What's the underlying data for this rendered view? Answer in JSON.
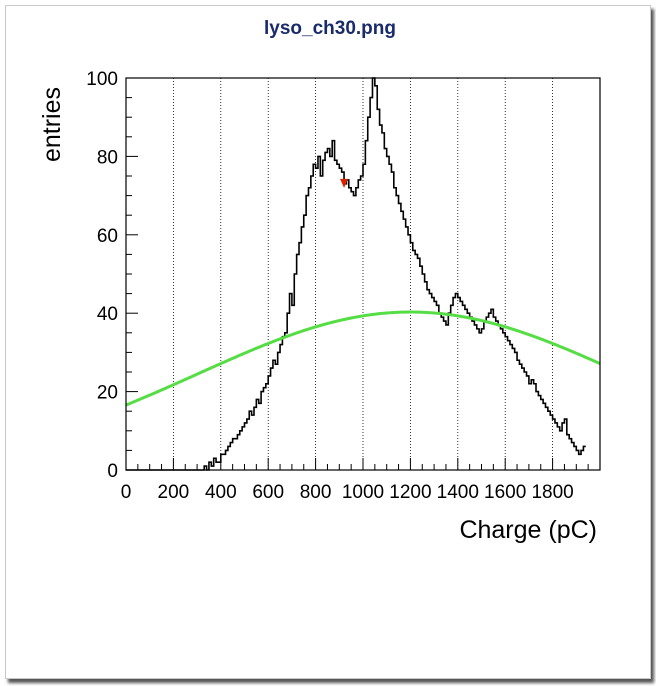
{
  "chart_data": {
    "type": "histogram",
    "title": "lyso_ch30.png",
    "xlabel": "Charge (pC)",
    "ylabel": "entries",
    "xlim": [
      0,
      2000
    ],
    "ylim": [
      0,
      100
    ],
    "x_tick_labels": [
      "0",
      "200",
      "400",
      "600",
      "800",
      "1000",
      "1200",
      "1400",
      "1600",
      "1800"
    ],
    "y_tick_labels": [
      "0",
      "20",
      "40",
      "60",
      "80",
      "100"
    ],
    "grid": "vertical dotted",
    "histogram": {
      "bin_width": 10,
      "x_start": 0,
      "values": [
        0,
        0,
        0,
        0,
        0,
        0,
        0,
        0,
        0,
        0,
        0,
        0,
        0,
        0,
        0,
        0,
        0,
        0,
        0,
        0,
        0,
        0,
        0,
        0,
        0,
        0,
        0,
        0,
        0,
        0,
        0,
        0,
        0,
        1,
        0,
        2,
        1,
        3,
        2,
        2,
        4,
        4,
        5,
        6,
        7,
        8,
        8,
        9,
        10,
        11,
        12,
        13,
        15,
        14,
        16,
        18,
        17,
        20,
        21,
        22,
        24,
        26,
        28,
        27,
        30,
        32,
        34,
        35,
        40,
        45,
        42,
        50,
        55,
        58,
        62,
        65,
        70,
        72,
        75,
        78,
        77,
        80,
        75,
        79,
        81,
        82,
        80,
        84,
        79,
        78,
        77,
        76,
        73,
        74,
        72,
        71,
        70,
        72,
        74,
        75,
        78,
        84,
        90,
        95,
        100,
        98,
        92,
        88,
        86,
        82,
        80,
        78,
        76,
        72,
        70,
        68,
        66,
        64,
        62,
        60,
        58,
        56,
        55,
        54,
        52,
        50,
        48,
        46,
        45,
        44,
        43,
        42,
        40,
        39,
        38,
        37,
        40,
        42,
        44,
        45,
        44,
        43,
        42,
        41,
        40,
        39,
        38,
        37,
        36,
        35,
        36,
        38,
        39,
        40,
        41,
        39,
        38,
        37,
        36,
        35,
        34,
        33,
        32,
        31,
        30,
        28,
        27,
        26,
        25,
        24,
        22,
        23,
        22,
        20,
        19,
        18,
        17,
        16,
        15,
        14,
        13,
        12,
        11,
        10,
        12,
        13,
        9,
        8,
        7,
        6,
        5,
        4,
        5,
        6
      ]
    },
    "fit_curve": {
      "type": "gaussian",
      "color": "#55dd44",
      "amplitude": 40.3,
      "mean": 1200,
      "sigma": 900
    },
    "marker": {
      "x": 920,
      "y": 73,
      "color": "#dd2200",
      "shape": "triangle-down"
    }
  }
}
